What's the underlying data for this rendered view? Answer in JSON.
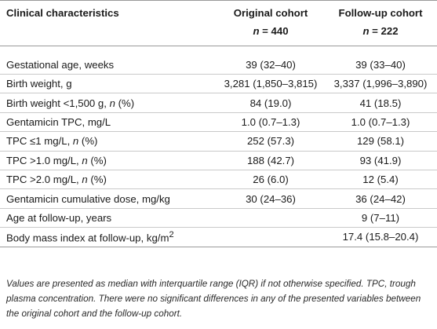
{
  "table": {
    "header": {
      "col1": "Clinical characteristics",
      "col2": "Original cohort",
      "col3": "Follow-up cohort",
      "n_symbol": "n",
      "n2": "= 440",
      "n3": "= 222"
    },
    "rows": [
      {
        "label": "Gestational age, weeks",
        "orig": "39 (32–40)",
        "follow": "39 (33–40)"
      },
      {
        "label": "Birth weight, g",
        "orig": "3,281 (1,850–3,815)",
        "follow": "3,337 (1,996–3,890)"
      },
      {
        "label_pre": "Birth weight <1,500 g, ",
        "label_n": "n",
        "label_post": " (%)",
        "orig": "84 (19.0)",
        "follow": "41 (18.5)"
      },
      {
        "label": "Gentamicin TPC, mg/L",
        "orig": "1.0 (0.7–1.3)",
        "follow": "1.0 (0.7–1.3)"
      },
      {
        "label_pre": "TPC ≤1 mg/L, ",
        "label_n": "n",
        "label_post": " (%)",
        "orig": "252 (57.3)",
        "follow": "129 (58.1)"
      },
      {
        "label_pre": "TPC >1.0 mg/L, ",
        "label_n": "n",
        "label_post": " (%)",
        "orig": "188 (42.7)",
        "follow": "93 (41.9)"
      },
      {
        "label_pre": "TPC >2.0 mg/L, ",
        "label_n": "n",
        "label_post": " (%)",
        "orig": "26 (6.0)",
        "follow": "12 (5.4)"
      },
      {
        "label": "Gentamicin cumulative dose, mg/kg",
        "orig": "30 (24–36)",
        "follow": "36 (24–42)"
      },
      {
        "label": "Age at follow-up, years",
        "orig": "",
        "follow": "9 (7–11)"
      },
      {
        "label_pre": "Body mass index at follow-up, kg/m",
        "label_sup": "2",
        "orig": "",
        "follow": "17.4 (15.8–20.4)"
      }
    ]
  },
  "footnote": "Values are presented as median with interquartile range (IQR) if not otherwise specified. TPC, trough plasma concentration. There were no significant differences in any of the presented variables between the original cohort and the follow-up cohort."
}
